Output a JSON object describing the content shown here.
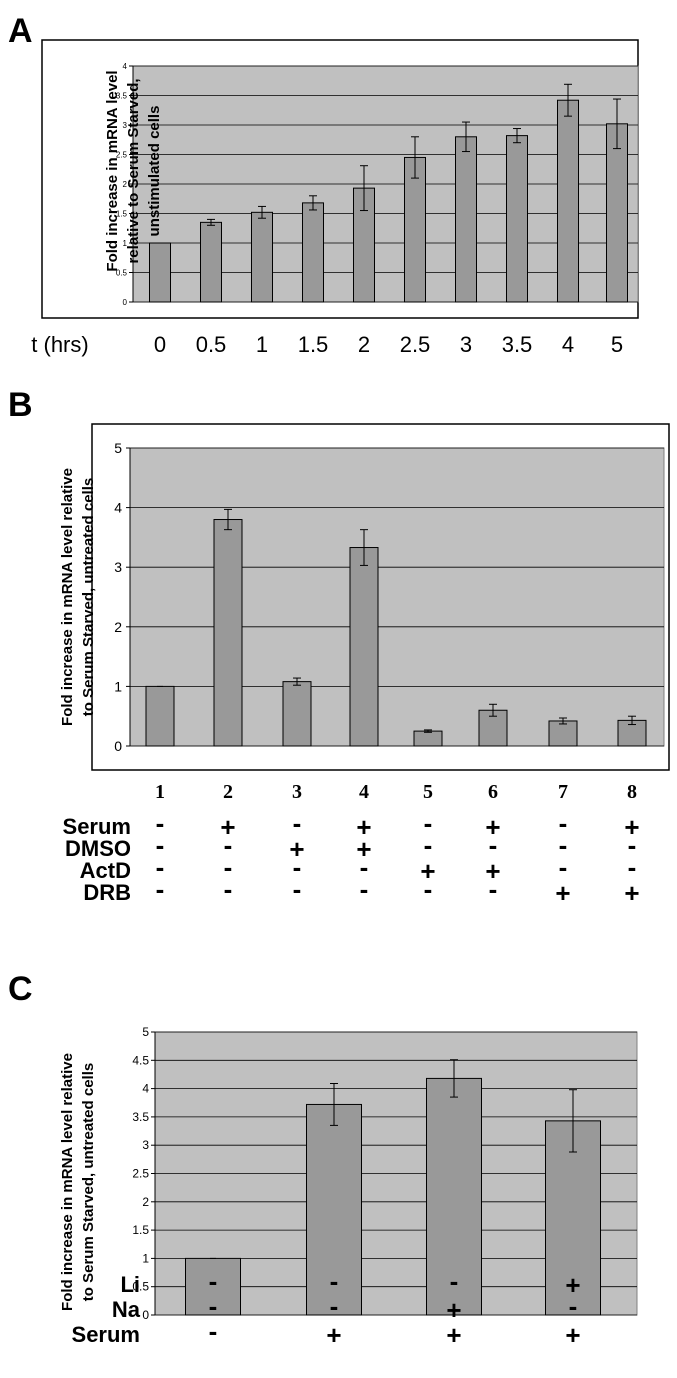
{
  "colors": {
    "plot_background": "#c0c0c0",
    "bar": "#999999",
    "frame": "#000000"
  },
  "chart_data": [
    {
      "panel": "A",
      "type": "bar",
      "ylabel": "Fold increase in  mRNA level relative to Serum Starved, unstimulated cells",
      "x_title": "t (hrs)",
      "categories": [
        "0",
        "0.5",
        "1",
        "1.5",
        "2",
        "2.5",
        "3",
        "3.5",
        "4",
        "5"
      ],
      "values": [
        1.0,
        1.35,
        1.52,
        1.68,
        1.93,
        2.45,
        2.8,
        2.82,
        3.42,
        3.02
      ],
      "errors": [
        0.0,
        0.05,
        0.1,
        0.12,
        0.38,
        0.35,
        0.25,
        0.12,
        0.27,
        0.42
      ],
      "ylim": [
        0,
        4
      ],
      "yticks": [
        "0",
        "0.5",
        "1",
        "1.5",
        "2",
        "2.5",
        "3",
        "3.5",
        "4"
      ],
      "grid": true
    },
    {
      "panel": "B",
      "type": "bar",
      "ylabel": "Fold increase in  mRNA level relative to Serum Starved, untreated cells",
      "categories": [
        "1",
        "2",
        "3",
        "4",
        "5",
        "6",
        "7",
        "8"
      ],
      "values": [
        1.0,
        3.8,
        1.08,
        3.33,
        0.25,
        0.6,
        0.42,
        0.43
      ],
      "errors": [
        0.0,
        0.17,
        0.06,
        0.3,
        0.02,
        0.1,
        0.05,
        0.07
      ],
      "ylim": [
        0,
        5
      ],
      "yticks": [
        "0",
        "1",
        "2",
        "3",
        "4",
        "5"
      ],
      "grid": true,
      "treatments": [
        {
          "label": "Serum",
          "signs": [
            "-",
            "+",
            "-",
            "+",
            "-",
            "+",
            "-",
            "+"
          ]
        },
        {
          "label": "DMSO",
          "signs": [
            "-",
            "-",
            "+",
            "+",
            "-",
            "-",
            "-",
            "-"
          ]
        },
        {
          "label": "ActD",
          "signs": [
            "-",
            "-",
            "-",
            "-",
            "+",
            "+",
            "-",
            "-"
          ]
        },
        {
          "label": "DRB",
          "signs": [
            "-",
            "-",
            "-",
            "-",
            "-",
            "-",
            "+",
            "+"
          ]
        }
      ]
    },
    {
      "panel": "C",
      "type": "bar",
      "ylabel": "Fold increase in  mRNA level relative to Serum Starved, untreated cells",
      "categories": [
        "1",
        "2",
        "3",
        "4"
      ],
      "values": [
        1.0,
        3.72,
        4.18,
        3.43
      ],
      "errors": [
        0.0,
        0.37,
        0.33,
        0.55
      ],
      "ylim": [
        0,
        5
      ],
      "yticks": [
        "0",
        "0.5",
        "1",
        "1.5",
        "2",
        "2.5",
        "3",
        "3.5",
        "4",
        "4.5",
        "5"
      ],
      "grid": true,
      "treatments": [
        {
          "label": "Li",
          "signs": [
            "-",
            "-",
            "-",
            "+"
          ]
        },
        {
          "label": "Na",
          "signs": [
            "-",
            "-",
            "+",
            "-"
          ]
        },
        {
          "label": "Serum",
          "signs": [
            "-",
            "+",
            "+",
            "+"
          ]
        }
      ]
    }
  ]
}
